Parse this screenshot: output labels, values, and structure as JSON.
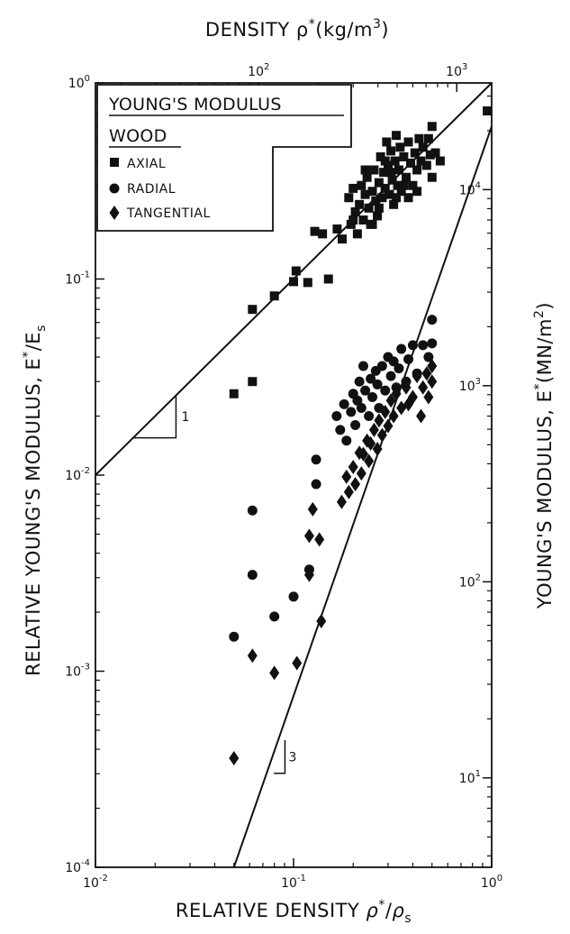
{
  "chart_data": {
    "type": "scatter",
    "title": "",
    "xscale": "log",
    "yscale": "log",
    "xlim": [
      0.01,
      1
    ],
    "ylim": [
      0.0001,
      1
    ],
    "xlabel": {
      "main": "RELATIVE DENSITY ",
      "sym": "ρ",
      "sup": "*",
      "slash": "/",
      "sym2": "ρ",
      "sub": "s"
    },
    "ylabel": {
      "main": "RELATIVE YOUNG'S MODULUS, E",
      "sup": "*",
      "slash": "/E",
      "sub": "s"
    },
    "x2label": {
      "main": "DENSITY  ρ",
      "sup": "*",
      "rest": "(kg/m",
      "sup2": "3",
      "end": ")"
    },
    "y2label": {
      "main": "YOUNG'S MODULUS, E",
      "sup": "*",
      "rest": "(MN/m",
      "sup2": "2",
      "end": ")"
    },
    "xticks": [
      {
        "value": 0.01,
        "base": "10",
        "exp": "-2"
      },
      {
        "value": 0.1,
        "base": "10",
        "exp": "-1"
      },
      {
        "value": 1,
        "base": "10",
        "exp": "0"
      }
    ],
    "yticks": [
      {
        "value": 1,
        "base": "10",
        "exp": "0"
      },
      {
        "value": 0.1,
        "base": "10",
        "exp": "-1"
      },
      {
        "value": 0.01,
        "base": "10",
        "exp": "-2"
      },
      {
        "value": 0.001,
        "base": "10",
        "exp": "-3"
      },
      {
        "value": 0.0001,
        "base": "10",
        "exp": "-4"
      }
    ],
    "x2ticks": [
      {
        "value": 100,
        "base": "10",
        "exp": "2"
      },
      {
        "value": 1000,
        "base": "10",
        "exp": "3"
      }
    ],
    "y2ticks": [
      {
        "value": 10000,
        "base": "10",
        "exp": "4"
      },
      {
        "value": 1000,
        "base": "10",
        "exp": "3"
      },
      {
        "value": 100,
        "base": "10",
        "exp": "2"
      },
      {
        "value": 10,
        "base": "10",
        "exp": "1"
      }
    ],
    "legend": {
      "title": "YOUNG'S MODULUS",
      "subtitle": "WOOD",
      "position": "top-left",
      "entries": [
        {
          "name": "AXIAL",
          "marker": "square"
        },
        {
          "name": "RADIAL",
          "marker": "circle"
        },
        {
          "name": "TANGENTIAL",
          "marker": "diamond"
        }
      ]
    },
    "lines": [
      {
        "slope": 1,
        "from": [
          0.01,
          0.01
        ],
        "to": [
          1,
          1
        ]
      },
      {
        "slope": 3,
        "from": [
          0.05,
          0.0001
        ],
        "to": [
          1,
          0.6
        ]
      }
    ],
    "slope_labels": [
      {
        "text": "1",
        "x": 0.025,
        "y": 0.022
      },
      {
        "text": "3",
        "x": 0.09,
        "y": 0.00036
      }
    ],
    "series": [
      {
        "name": "AXIAL",
        "marker": "square",
        "points": [
          [
            0.05,
            0.026
          ],
          [
            0.062,
            0.03
          ],
          [
            0.062,
            0.07
          ],
          [
            0.08,
            0.082
          ],
          [
            0.1,
            0.097
          ],
          [
            0.103,
            0.11
          ],
          [
            0.118,
            0.096
          ],
          [
            0.14,
            0.17
          ],
          [
            0.128,
            0.175
          ],
          [
            0.15,
            0.1
          ],
          [
            0.166,
            0.18
          ],
          [
            0.176,
            0.16
          ],
          [
            0.19,
            0.26
          ],
          [
            0.195,
            0.19
          ],
          [
            0.2,
            0.29
          ],
          [
            0.205,
            0.22
          ],
          [
            0.21,
            0.17
          ],
          [
            0.215,
            0.24
          ],
          [
            0.22,
            0.3
          ],
          [
            0.225,
            0.2
          ],
          [
            0.23,
            0.27
          ],
          [
            0.235,
            0.33
          ],
          [
            0.24,
            0.23
          ],
          [
            0.245,
            0.19
          ],
          [
            0.25,
            0.28
          ],
          [
            0.255,
            0.36
          ],
          [
            0.26,
            0.25
          ],
          [
            0.265,
            0.21
          ],
          [
            0.27,
            0.31
          ],
          [
            0.275,
            0.42
          ],
          [
            0.28,
            0.26
          ],
          [
            0.285,
            0.35
          ],
          [
            0.29,
            0.29
          ],
          [
            0.295,
            0.5
          ],
          [
            0.3,
            0.38
          ],
          [
            0.305,
            0.27
          ],
          [
            0.31,
            0.45
          ],
          [
            0.315,
            0.32
          ],
          [
            0.32,
            0.24
          ],
          [
            0.325,
            0.4
          ],
          [
            0.33,
            0.54
          ],
          [
            0.335,
            0.3
          ],
          [
            0.34,
            0.36
          ],
          [
            0.345,
            0.47
          ],
          [
            0.35,
            0.28
          ],
          [
            0.36,
            0.42
          ],
          [
            0.37,
            0.33
          ],
          [
            0.38,
            0.5
          ],
          [
            0.39,
            0.39
          ],
          [
            0.4,
            0.3
          ],
          [
            0.41,
            0.44
          ],
          [
            0.42,
            0.36
          ],
          [
            0.43,
            0.52
          ],
          [
            0.44,
            0.4
          ],
          [
            0.45,
            0.47
          ],
          [
            0.47,
            0.38
          ],
          [
            0.49,
            0.43
          ],
          [
            0.5,
            0.33
          ],
          [
            0.52,
            0.44
          ],
          [
            0.55,
            0.4
          ],
          [
            0.2,
            0.2
          ],
          [
            0.23,
            0.36
          ],
          [
            0.25,
            0.19
          ],
          [
            0.27,
            0.23
          ],
          [
            0.29,
            0.4
          ],
          [
            0.31,
            0.35
          ],
          [
            0.33,
            0.26
          ],
          [
            0.36,
            0.3
          ],
          [
            0.38,
            0.26
          ],
          [
            0.42,
            0.28
          ],
          [
            0.48,
            0.52
          ],
          [
            0.5,
            0.6
          ],
          [
            0.95,
            0.72
          ]
        ]
      },
      {
        "name": "RADIAL",
        "marker": "circle",
        "points": [
          [
            0.05,
            0.0015
          ],
          [
            0.062,
            0.0066
          ],
          [
            0.062,
            0.0031
          ],
          [
            0.08,
            0.0019
          ],
          [
            0.1,
            0.0024
          ],
          [
            0.12,
            0.0033
          ],
          [
            0.13,
            0.012
          ],
          [
            0.13,
            0.009
          ],
          [
            0.165,
            0.02
          ],
          [
            0.172,
            0.017
          ],
          [
            0.18,
            0.023
          ],
          [
            0.185,
            0.015
          ],
          [
            0.195,
            0.021
          ],
          [
            0.2,
            0.026
          ],
          [
            0.205,
            0.018
          ],
          [
            0.21,
            0.024
          ],
          [
            0.215,
            0.03
          ],
          [
            0.22,
            0.022
          ],
          [
            0.225,
            0.036
          ],
          [
            0.23,
            0.027
          ],
          [
            0.24,
            0.02
          ],
          [
            0.245,
            0.031
          ],
          [
            0.25,
            0.025
          ],
          [
            0.26,
            0.034
          ],
          [
            0.265,
            0.029
          ],
          [
            0.27,
            0.022
          ],
          [
            0.28,
            0.036
          ],
          [
            0.29,
            0.027
          ],
          [
            0.3,
            0.04
          ],
          [
            0.31,
            0.032
          ],
          [
            0.32,
            0.038
          ],
          [
            0.33,
            0.028
          ],
          [
            0.34,
            0.035
          ],
          [
            0.35,
            0.044
          ],
          [
            0.37,
            0.03
          ],
          [
            0.38,
            0.039
          ],
          [
            0.4,
            0.046
          ],
          [
            0.42,
            0.033
          ],
          [
            0.45,
            0.046
          ],
          [
            0.48,
            0.04
          ],
          [
            0.5,
            0.047
          ],
          [
            0.5,
            0.062
          ]
        ]
      },
      {
        "name": "TANGENTIAL",
        "marker": "diamond",
        "points": [
          [
            0.05,
            0.00036
          ],
          [
            0.062,
            0.0012
          ],
          [
            0.08,
            0.00098
          ],
          [
            0.104,
            0.0011
          ],
          [
            0.12,
            0.0049
          ],
          [
            0.12,
            0.0031
          ],
          [
            0.138,
            0.0018
          ],
          [
            0.135,
            0.0047
          ],
          [
            0.125,
            0.0067
          ],
          [
            0.175,
            0.0073
          ],
          [
            0.185,
            0.0098
          ],
          [
            0.19,
            0.0082
          ],
          [
            0.2,
            0.011
          ],
          [
            0.205,
            0.009
          ],
          [
            0.215,
            0.013
          ],
          [
            0.22,
            0.0102
          ],
          [
            0.225,
            0.0128
          ],
          [
            0.235,
            0.015
          ],
          [
            0.24,
            0.0118
          ],
          [
            0.245,
            0.0145
          ],
          [
            0.255,
            0.017
          ],
          [
            0.265,
            0.0136
          ],
          [
            0.27,
            0.019
          ],
          [
            0.28,
            0.016
          ],
          [
            0.29,
            0.021
          ],
          [
            0.3,
            0.0178
          ],
          [
            0.31,
            0.024
          ],
          [
            0.32,
            0.02
          ],
          [
            0.33,
            0.026
          ],
          [
            0.35,
            0.022
          ],
          [
            0.37,
            0.028
          ],
          [
            0.38,
            0.023
          ],
          [
            0.4,
            0.025
          ],
          [
            0.42,
            0.032
          ],
          [
            0.45,
            0.028
          ],
          [
            0.47,
            0.033
          ],
          [
            0.5,
            0.03
          ],
          [
            0.5,
            0.036
          ],
          [
            0.44,
            0.02
          ],
          [
            0.48,
            0.025
          ]
        ]
      }
    ]
  }
}
